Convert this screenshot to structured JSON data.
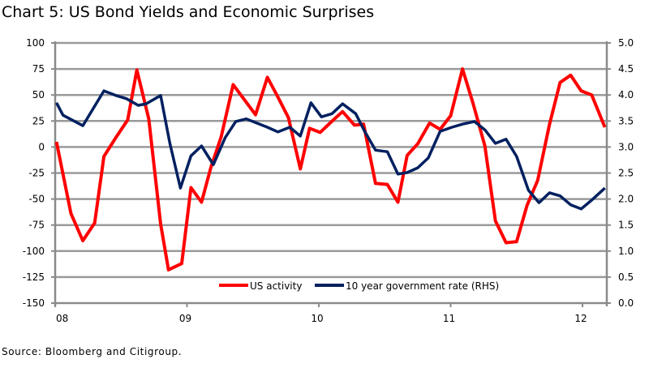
{
  "chart_data": {
    "type": "line",
    "title": "Chart 5: US Bond Yields and Economic Surprises",
    "source": "Source: Bloomberg and Citigroup.",
    "xlabel": "",
    "ylabel": "",
    "x_ticks": [
      "08",
      "09",
      "10",
      "11",
      "12"
    ],
    "xlim": [
      2008.0,
      2012.2
    ],
    "y_left": {
      "min": -150,
      "max": 100,
      "step": 25,
      "ticks": [
        "100",
        "75",
        "50",
        "25",
        "0",
        "-25",
        "-50",
        "-75",
        "-100",
        "-125",
        "-150"
      ]
    },
    "y_right": {
      "min": 0,
      "max": 5,
      "step": 0.5,
      "ticks": [
        "5.0",
        "4.5",
        "4.0",
        "3.5",
        "3.0",
        "2.5",
        "2.0",
        "1.5",
        "1.0",
        "0.5",
        "0.0"
      ]
    },
    "grid": true,
    "legend_placement": "bottom-center",
    "series": [
      {
        "name": "US activity",
        "axis": "left",
        "color": "#ff0000",
        "x": [
          2008.01,
          2008.12,
          2008.21,
          2008.3,
          2008.37,
          2008.46,
          2008.55,
          2008.62,
          2008.71,
          2008.8,
          2008.86,
          2008.96,
          2009.03,
          2009.11,
          2009.18,
          2009.26,
          2009.35,
          2009.52,
          2009.61,
          2009.69,
          2009.77,
          2009.86,
          2009.93,
          2010.01,
          2010.11,
          2010.18,
          2010.27,
          2010.34,
          2010.43,
          2010.52,
          2010.6,
          2010.67,
          2010.75,
          2010.84,
          2010.92,
          2011.0,
          2011.09,
          2011.17,
          2011.26,
          2011.34,
          2011.42,
          2011.5,
          2011.58,
          2011.66,
          2011.75,
          2011.83,
          2011.91,
          2011.99,
          2012.07,
          2012.17
        ],
        "y": [
          5,
          -64,
          -90,
          -73,
          -9,
          9,
          26,
          74,
          27,
          -74,
          -118,
          -112,
          -39,
          -53,
          -20,
          10,
          60,
          31,
          67,
          48,
          28,
          -21,
          18,
          14,
          26,
          34,
          21,
          22,
          -35,
          -36,
          -53,
          -8,
          3,
          23,
          17,
          30,
          75,
          42,
          1,
          -71,
          -92,
          -91,
          -56,
          -32,
          22,
          62,
          69,
          54,
          50,
          19
        ]
      },
      {
        "name": "10 year government rate (RHS)",
        "axis": "right",
        "color": "#002060",
        "x": [
          2008.01,
          2008.06,
          2008.21,
          2008.37,
          2008.46,
          2008.54,
          2008.63,
          2008.69,
          2008.8,
          2008.87,
          2008.95,
          2009.03,
          2009.11,
          2009.2,
          2009.29,
          2009.37,
          2009.45,
          2009.53,
          2009.61,
          2009.69,
          2009.78,
          2009.86,
          2009.94,
          2010.02,
          2010.1,
          2010.18,
          2010.28,
          2010.35,
          2010.43,
          2010.52,
          2010.6,
          2010.67,
          2010.75,
          2010.83,
          2010.92,
          2011.01,
          2011.09,
          2011.18,
          2011.26,
          2011.34,
          2011.42,
          2011.5,
          2011.59,
          2011.67,
          2011.75,
          2011.83,
          2011.91,
          2011.99,
          2012.07,
          2012.17
        ],
        "y": [
          3.85,
          3.61,
          3.41,
          4.08,
          3.99,
          3.93,
          3.8,
          3.83,
          3.99,
          3.07,
          2.21,
          2.83,
          3.02,
          2.66,
          3.18,
          3.49,
          3.54,
          3.46,
          3.38,
          3.29,
          3.38,
          3.21,
          3.85,
          3.58,
          3.64,
          3.83,
          3.64,
          3.29,
          2.94,
          2.91,
          2.48,
          2.51,
          2.6,
          2.79,
          3.3,
          3.38,
          3.44,
          3.49,
          3.33,
          3.07,
          3.15,
          2.82,
          2.17,
          1.93,
          2.12,
          2.06,
          1.89,
          1.81,
          1.98,
          2.21
        ]
      }
    ]
  }
}
